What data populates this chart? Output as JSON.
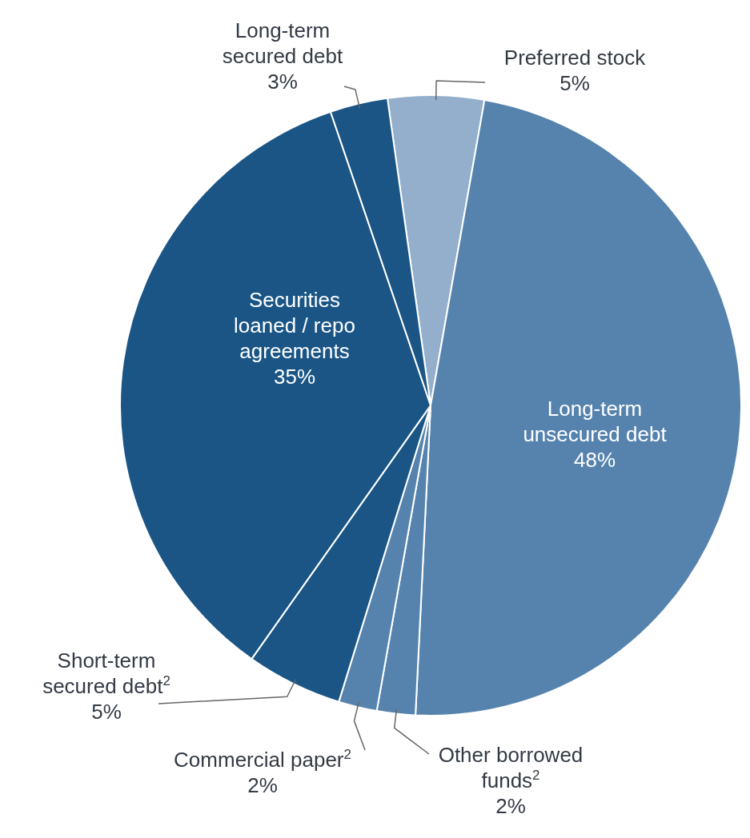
{
  "chart_data": {
    "type": "pie",
    "categories": [
      "Preferred stock",
      "Long-term unsecured debt",
      "Other borrowed funds$^{2}$",
      "Commercial paper$^{2}$",
      "Short-term secured debt$^{2}$",
      "Securities loaned / repo agreements",
      "Long-term secured debt"
    ],
    "values": [
      5,
      48,
      2,
      2,
      5,
      35,
      3
    ],
    "colors": [
      "#93afcc",
      "#5683ad",
      "#5683ad",
      "#5683ad",
      "#1a5585",
      "#1a5585",
      "#1a5585"
    ],
    "value_labels": [
      "5%",
      "48%",
      "2%",
      "2%",
      "5%",
      "35%",
      "3%"
    ]
  }
}
